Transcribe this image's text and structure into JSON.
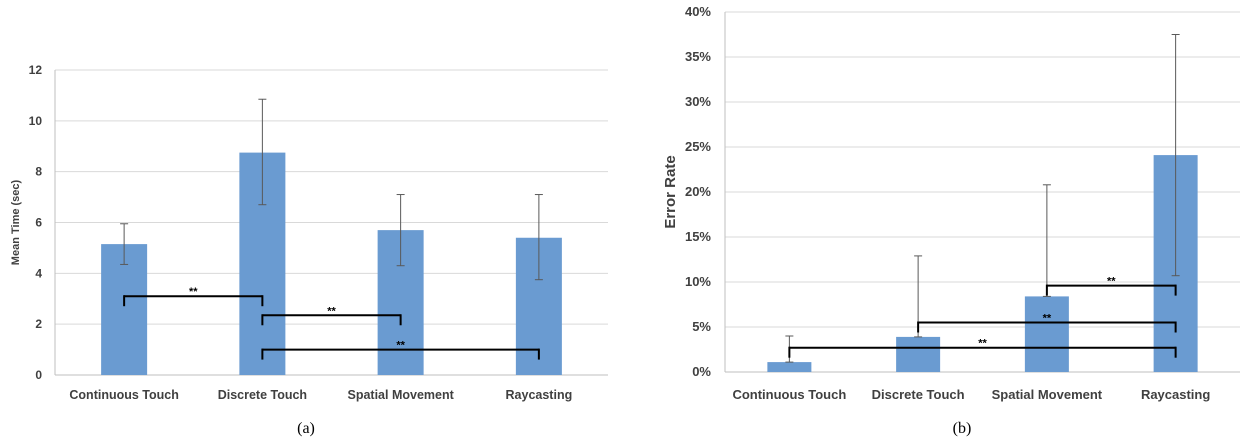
{
  "chart_data": [
    {
      "type": "bar",
      "caption": "(a)",
      "title": "",
      "xlabel": "",
      "ylabel": "Mean Time (sec)",
      "ylim": [
        0,
        12
      ],
      "yticks": [
        0,
        2,
        4,
        6,
        8,
        10,
        12
      ],
      "ytick_labels": [
        "0",
        "2",
        "4",
        "6",
        "8",
        "10",
        "12"
      ],
      "grid": true,
      "bar_color": "#6a9bd1",
      "categories": [
        "Continuous Touch",
        "Discrete Touch",
        "Spatial Movement",
        "Raycasting"
      ],
      "values": [
        5.15,
        8.75,
        5.7,
        5.4
      ],
      "error_low": [
        4.35,
        6.7,
        4.3,
        3.75
      ],
      "error_high": [
        5.95,
        10.85,
        7.1,
        7.1
      ],
      "significance": [
        {
          "from": 0,
          "to": 1,
          "y": 3.1,
          "label": "**"
        },
        {
          "from": 1,
          "to": 2,
          "y": 2.35,
          "label": "**"
        },
        {
          "from": 1,
          "to": 3,
          "y": 1.0,
          "label": "**"
        }
      ]
    },
    {
      "type": "bar",
      "caption": "(b)",
      "title": "",
      "xlabel": "",
      "ylabel": "Error Rate",
      "ylim": [
        0,
        40
      ],
      "yticks": [
        0,
        5,
        10,
        15,
        20,
        25,
        30,
        35,
        40
      ],
      "ytick_labels": [
        "0%",
        "5%",
        "10%",
        "15%",
        "20%",
        "25%",
        "30%",
        "35%",
        "40%"
      ],
      "grid": true,
      "bar_color": "#6a9bd1",
      "categories": [
        "Continuous Touch",
        "Discrete Touch",
        "Spatial Movement",
        "Raycasting"
      ],
      "values": [
        1.1,
        3.9,
        8.4,
        24.1
      ],
      "error_low": [
        1.1,
        3.9,
        8.4,
        10.7
      ],
      "error_high": [
        4.0,
        12.9,
        20.8,
        37.5
      ],
      "significance": [
        {
          "from": 2,
          "to": 3,
          "y": 9.6,
          "label": "**"
        },
        {
          "from": 1,
          "to": 3,
          "y": 5.5,
          "label": "**"
        },
        {
          "from": 0,
          "to": 3,
          "y": 2.7,
          "label": "**"
        }
      ]
    }
  ]
}
